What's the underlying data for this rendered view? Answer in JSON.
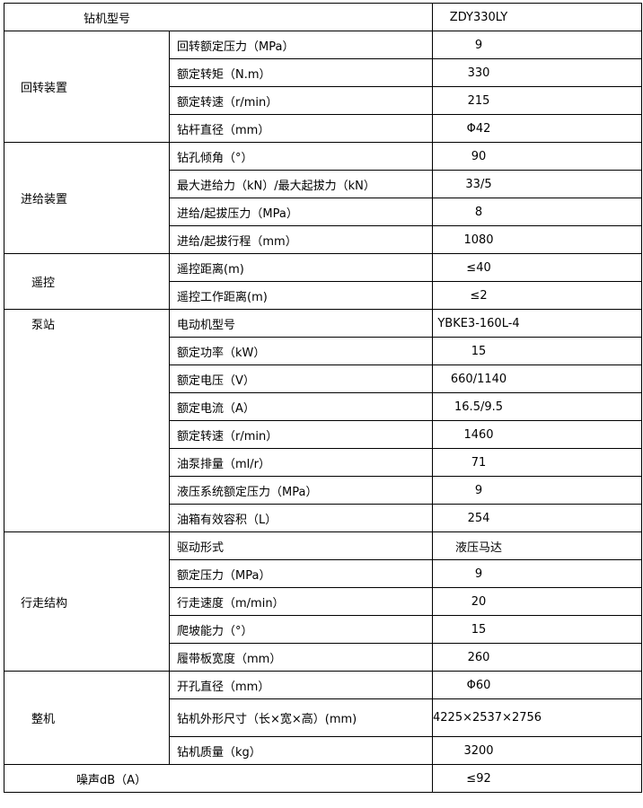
{
  "header": {
    "label": "钻机型号",
    "value": "ZDY330LY"
  },
  "groups": [
    {
      "name": "回转装置",
      "rows": [
        {
          "param": "回转额定压力（MPa）",
          "value": "9"
        },
        {
          "param": "额定转矩（N.m）",
          "value": "330"
        },
        {
          "param": "额定转速（r/min）",
          "value": "215"
        },
        {
          "param": "钻杆直径（mm）",
          "value": "Φ42"
        }
      ]
    },
    {
      "name": "进给装置",
      "rows": [
        {
          "param": "钻孔倾角（°）",
          "value": "90"
        },
        {
          "param": "最大进给力（kN）/最大起拔力（kN）",
          "value": "33/5"
        },
        {
          "param": "进给/起拔压力（MPa）",
          "value": "8"
        },
        {
          "param": "进给/起拔行程（mm）",
          "value": "1080"
        }
      ]
    },
    {
      "name": "遥控",
      "rows": [
        {
          "param": "遥控距离(m)",
          "value": "≤40"
        },
        {
          "param": "遥控工作距离(m)",
          "value": "≤2"
        }
      ]
    },
    {
      "name": "泵站",
      "rows": [
        {
          "param": "电动机型号",
          "value": "YBKE3-160L-4"
        },
        {
          "param": "额定功率（kW）",
          "value": "15"
        },
        {
          "param": "额定电压（V）",
          "value": "660/1140"
        },
        {
          "param": "额定电流（A）",
          "value": "16.5/9.5"
        },
        {
          "param": "额定转速（r/min）",
          "value": "1460"
        },
        {
          "param": "油泵排量（ml/r）",
          "value": "71"
        },
        {
          "param": "液压系统额定压力（MPa）",
          "value": "9"
        },
        {
          "param": "油箱有效容积（L）",
          "value": "254"
        }
      ]
    },
    {
      "name": "行走结构",
      "rows": [
        {
          "param": "驱动形式",
          "value": "液压马达"
        },
        {
          "param": "额定压力（MPa）",
          "value": "9"
        },
        {
          "param": "行走速度（m/min）",
          "value": "20"
        },
        {
          "param": "爬坡能力（°）",
          "value": "15"
        },
        {
          "param": "履带板宽度（mm）",
          "value": "260"
        }
      ]
    },
    {
      "name": "整机",
      "rows": [
        {
          "param": "开孔直径（mm）",
          "value": "Φ60"
        },
        {
          "param": "钻机外形尺寸（长×宽×高）(mm)",
          "value": "4225×2537×2756"
        },
        {
          "param": "钻机质量（kg）",
          "value": "3200"
        }
      ]
    }
  ],
  "footer": {
    "label": "噪声dB（A）",
    "value": "≤92"
  }
}
